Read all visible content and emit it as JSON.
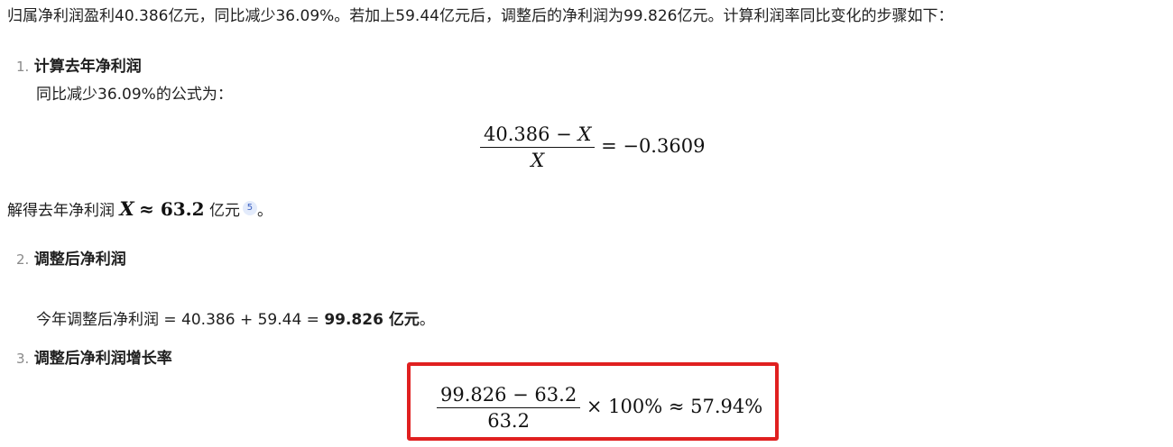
{
  "intro": "归属净利润盈利40.386亿元，同比减少36.09%。若加上59.44亿元后，调整后的净利润为99.826亿元。计算利润率同比变化的步骤如下：",
  "steps": [
    {
      "num": "1.",
      "title": "计算去年净利润",
      "desc": "同比减少36.09%的公式为："
    },
    {
      "num": "2.",
      "title": "调整后净利润"
    },
    {
      "num": "3.",
      "title": "调整后净利润增长率"
    }
  ],
  "formula1": {
    "num_text": "40.386 − ",
    "num_var": "X",
    "den_var": "X",
    "rhs": "= −0.3609"
  },
  "solve": {
    "prefix": "解得去年净利润",
    "var": "X",
    "approx": "≈ 63.2",
    "suffix": "亿元",
    "cite": "5",
    "end": "。"
  },
  "adjusted": {
    "text": "今年调整后净利润 = 40.386 + 59.44 = ",
    "result": "99.826 亿元",
    "end": "。"
  },
  "formula3": {
    "numerator": "99.826 − 63.2",
    "denominator": "63.2",
    "rhs": "× 100% ≈ 57.94%"
  }
}
